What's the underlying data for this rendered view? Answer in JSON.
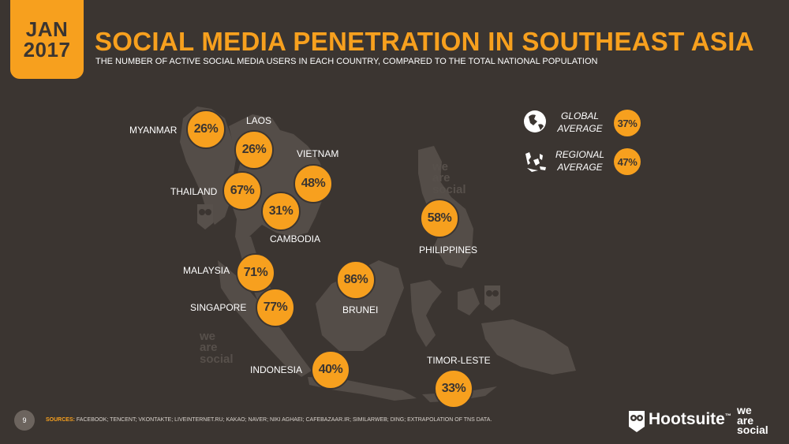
{
  "header": {
    "badge_month": "JAN",
    "badge_year": "2017",
    "title": "SOCIAL MEDIA PENETRATION IN SOUTHEAST ASIA",
    "subtitle": "THE NUMBER OF ACTIVE SOCIAL MEDIA USERS IN EACH COUNTRY, COMPARED TO THE TOTAL NATIONAL POPULATION"
  },
  "countries": [
    {
      "name": "MYANMAR",
      "value": "26%"
    },
    {
      "name": "LAOS",
      "value": "26%"
    },
    {
      "name": "VIETNAM",
      "value": "48%"
    },
    {
      "name": "THAILAND",
      "value": "67%"
    },
    {
      "name": "CAMBODIA",
      "value": "31%"
    },
    {
      "name": "PHILIPPINES",
      "value": "58%"
    },
    {
      "name": "MALAYSIA",
      "value": "71%"
    },
    {
      "name": "SINGAPORE",
      "value": "77%"
    },
    {
      "name": "BRUNEI",
      "value": "86%"
    },
    {
      "name": "INDONESIA",
      "value": "40%"
    },
    {
      "name": "TIMOR-LESTE",
      "value": "33%"
    }
  ],
  "averages": {
    "global_label_1": "GLOBAL",
    "global_label_2": "AVERAGE",
    "global_value": "37%",
    "regional_label_1": "REGIONAL",
    "regional_label_2": "AVERAGE",
    "regional_value": "47%"
  },
  "watermark": {
    "line1": "we",
    "line2": "are",
    "line3": "social"
  },
  "footer": {
    "page": "9",
    "sources_label": "SOURCES:",
    "sources_text": "FACEBOOK; TENCENT; VKONTAKTE; LIVEINTERNET.RU; KAKAO; NAVER; NIKI AGHAEI; CAFEBAZAAR.IR; SIMILARWEB; DING; EXTRAPOLATION OF TNS DATA.",
    "brand1": "Hootsuite",
    "brand1_tm": "™",
    "brand2_l1": "we",
    "brand2_l2": "are",
    "brand2_l3": "social"
  },
  "colors": {
    "accent": "#f7a01e",
    "background": "#3b3531",
    "land": "#544d48"
  }
}
